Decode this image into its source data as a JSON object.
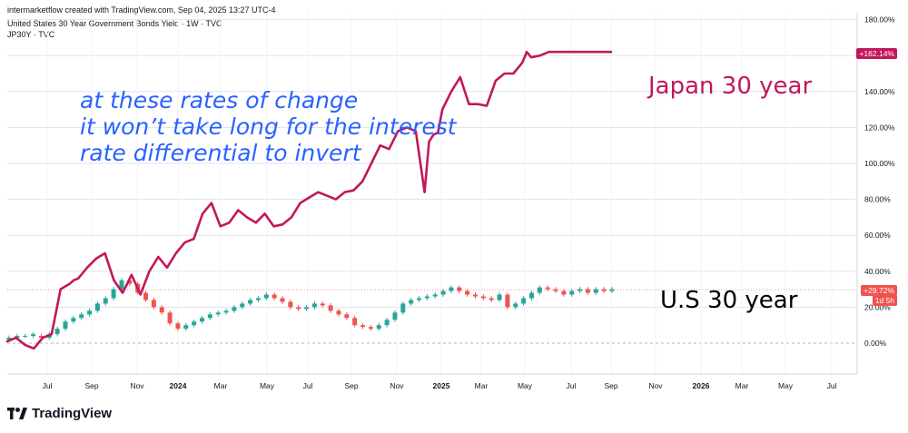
{
  "header": {
    "created_line": "intermarketflow created with TradingView.com, Sep 04, 2025 13:27 UTC-4",
    "symbol_line": "United States 30 Year Government Bonds Yield · 1W · TVC",
    "compare_line": "JP30Y · TVC"
  },
  "annotation": {
    "lines": [
      "at these rates of change",
      "it won’t take long for the interest",
      "rate differential to invert"
    ]
  },
  "labels": {
    "japan": "Japan 30 year",
    "us": "U.S 30 year"
  },
  "tags": {
    "japan": "+162.14%",
    "us_value": "+29.72%",
    "us_countdown": "1d 5h"
  },
  "brand": {
    "name": "TradingView"
  },
  "colors": {
    "japan_line": "#c2185b",
    "up": "#26a69a",
    "down": "#ef5350",
    "annotation": "#2962ff",
    "grid": "#e0e3eb"
  },
  "chart_data": {
    "type": "line",
    "y_unit": "percent change",
    "ylim": [
      -10,
      180
    ],
    "yticks": [
      "180.00%",
      "160.00%",
      "140.00%",
      "120.00%",
      "100.00%",
      "80.00%",
      "60.00%",
      "40.00%",
      "20.00%",
      "0.00%"
    ],
    "ytick_values": [
      180,
      160,
      140,
      120,
      100,
      80,
      60,
      40,
      20,
      0
    ],
    "x_tick_labels": [
      "Jul",
      "Sep",
      "Nov",
      "2024",
      "Mar",
      "May",
      "Jul",
      "Sep",
      "Nov",
      "2025",
      "Mar",
      "May",
      "Jul",
      "Sep",
      "Nov",
      "2026",
      "Mar",
      "May",
      "Jul"
    ],
    "x_tick_bold": [
      false,
      false,
      false,
      true,
      false,
      false,
      false,
      false,
      false,
      true,
      false,
      false,
      false,
      false,
      false,
      true,
      false,
      false,
      false
    ],
    "series": [
      {
        "name": "JP30Y",
        "kind": "line",
        "x": [
          0,
          2,
          4,
          6,
          8,
          10,
          12,
          14,
          15,
          16,
          18,
          20,
          22,
          24,
          26,
          28,
          30,
          32,
          34,
          36,
          38,
          40,
          42,
          44,
          46,
          48,
          50,
          52,
          54,
          56,
          58,
          60,
          62,
          64,
          66,
          68,
          70,
          72,
          74,
          76,
          78,
          80,
          82,
          84,
          86,
          88,
          90,
          92,
          94,
          95,
          96,
          97,
          98,
          100,
          102,
          104,
          106,
          108,
          110,
          112,
          114,
          116,
          117,
          118,
          120,
          122,
          124,
          126,
          128,
          130,
          132,
          134,
          136
        ],
        "y": [
          1,
          3,
          -1,
          -3,
          3,
          5,
          30,
          33,
          35,
          36,
          42,
          47,
          50,
          35,
          28,
          38,
          27,
          40,
          48,
          42,
          50,
          56,
          58,
          72,
          78,
          65,
          67,
          74,
          70,
          67,
          72,
          65,
          66,
          70,
          78,
          81,
          84,
          82,
          80,
          84,
          85,
          90,
          100,
          110,
          108,
          118,
          120,
          118,
          84,
          112,
          116,
          117,
          130,
          140,
          148,
          133,
          133,
          132,
          146,
          150,
          150,
          156,
          162,
          159,
          160,
          162,
          162,
          162,
          162,
          162,
          162,
          162,
          162
        ]
      },
      {
        "name": "US30Y",
        "kind": "candles",
        "weekly_close": [
          3,
          4,
          4,
          5,
          3,
          5,
          8,
          12,
          14,
          16,
          18,
          22,
          25,
          30,
          35,
          33,
          28,
          24,
          20,
          17,
          11,
          8,
          10,
          12,
          14,
          16,
          17,
          18,
          20,
          22,
          24,
          25,
          27,
          25,
          23,
          20,
          19,
          20,
          22,
          21,
          18,
          16,
          14,
          10,
          9,
          8,
          10,
          13,
          17,
          22,
          24,
          25,
          26,
          27,
          29,
          31,
          29,
          27,
          26,
          25,
          24,
          27,
          20,
          22,
          25,
          28,
          31,
          30,
          29,
          27,
          29,
          30,
          28,
          30,
          29,
          30
        ],
        "weekly_open": [
          2,
          3,
          4,
          4,
          4,
          3,
          5,
          8,
          12,
          14,
          16,
          18,
          22,
          25,
          30,
          35,
          33,
          28,
          24,
          20,
          17,
          11,
          8,
          10,
          12,
          14,
          16,
          17,
          18,
          20,
          22,
          24,
          25,
          27,
          25,
          23,
          20,
          19,
          20,
          22,
          21,
          18,
          16,
          14,
          10,
          9,
          8,
          10,
          13,
          17,
          22,
          24,
          25,
          26,
          27,
          29,
          31,
          29,
          27,
          26,
          25,
          24,
          27,
          20,
          22,
          25,
          28,
          31,
          30,
          29,
          27,
          29,
          30,
          28,
          30,
          29
        ]
      }
    ]
  }
}
